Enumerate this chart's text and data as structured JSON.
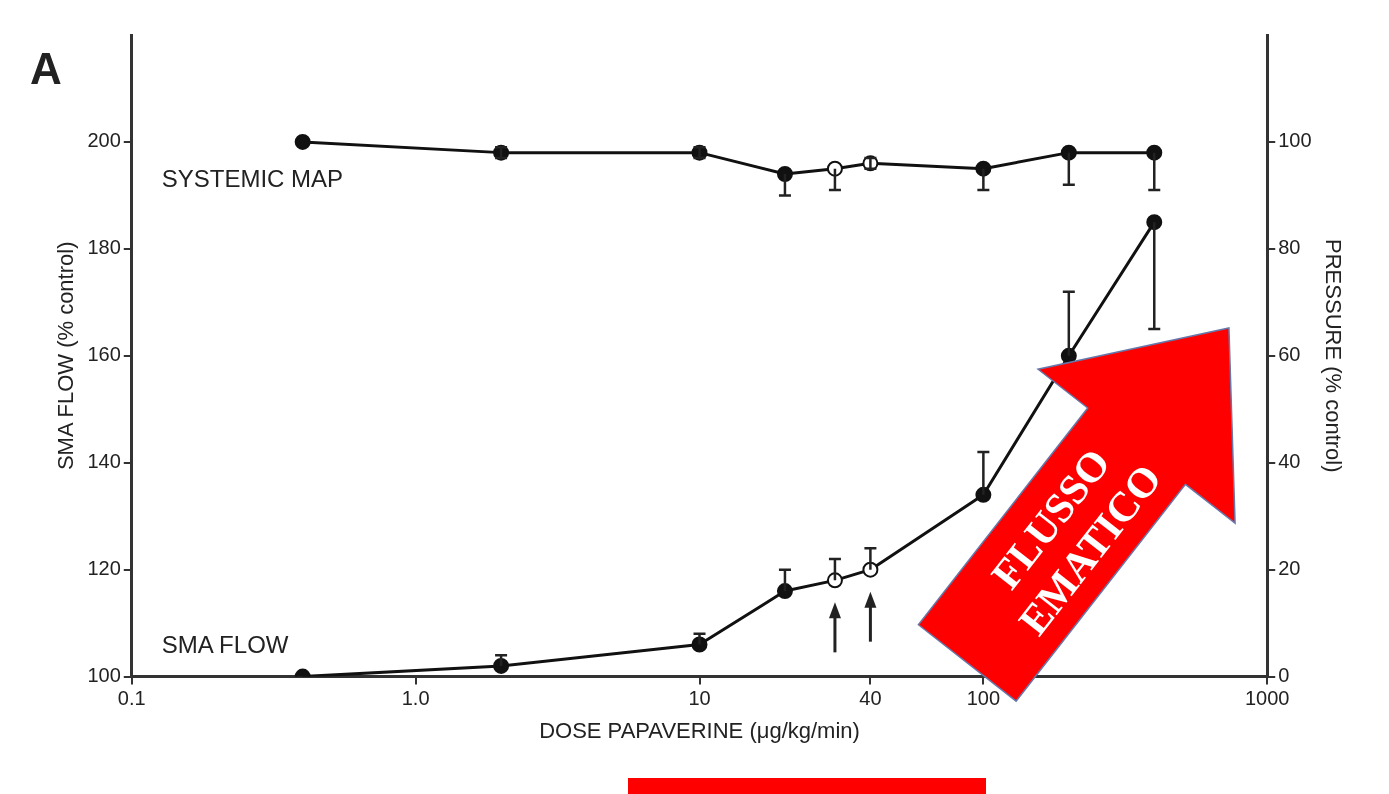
{
  "chart_data": {
    "type": "line",
    "title": "A",
    "xlabel": "DOSE PAPAVERINE (μg/kg/min)",
    "ylabel": "SMA FLOW (% control)",
    "y2label": "PRESSURE (% control)",
    "log": "x",
    "grid": false,
    "legend": false,
    "marker": "circle",
    "line_style": "solid",
    "xlim": [
      0.1,
      1000
    ],
    "xticks": [
      0.1,
      {
        "value": 1,
        "label": "1.0"
      },
      10,
      40,
      100,
      1000
    ],
    "ylim": [
      100,
      220
    ],
    "yticks": [
      100,
      120,
      140,
      160,
      180,
      200
    ],
    "y2lim": [
      0,
      120
    ],
    "y2ticks": [
      0,
      20,
      40,
      60,
      80,
      100
    ],
    "series": [
      {
        "name": "SYSTEMIC MAP",
        "axis": "y2",
        "color": "#111111",
        "x": [
          0.4,
          2,
          10,
          20,
          30,
          40,
          100,
          200,
          400
        ],
        "values": [
          100,
          98,
          98,
          94,
          95,
          96,
          95,
          98,
          98
        ],
        "colors": [
          "#111111",
          "#111111",
          "#111111",
          "#111111",
          "#ffffff",
          "#ffffff",
          "#111111",
          "#111111",
          "#111111"
        ],
        "errors": [
          null,
          1,
          1,
          [
            90,
            94
          ],
          [
            91,
            95
          ],
          1,
          [
            91,
            95
          ],
          [
            92,
            98
          ],
          [
            91,
            98
          ]
        ]
      },
      {
        "name": "SMA FLOW",
        "color": "#111111",
        "x": [
          0.4,
          2,
          10,
          20,
          30,
          40,
          100,
          200,
          400
        ],
        "values": [
          100,
          102,
          106,
          116,
          118,
          120,
          134,
          160,
          185
        ],
        "colors": [
          "#111111",
          "#111111",
          "#111111",
          "#111111",
          "#ffffff",
          "#ffffff",
          "#111111",
          "#111111",
          "#111111"
        ],
        "errors": [
          null,
          [
            102,
            104
          ],
          [
            106,
            108
          ],
          [
            116,
            120
          ],
          [
            118,
            122
          ],
          [
            120,
            124
          ],
          [
            134,
            142
          ],
          [
            160,
            172
          ],
          [
            165,
            185
          ]
        ]
      }
    ],
    "annotations": [
      "FLUSSO EMATICO"
    ]
  }
}
